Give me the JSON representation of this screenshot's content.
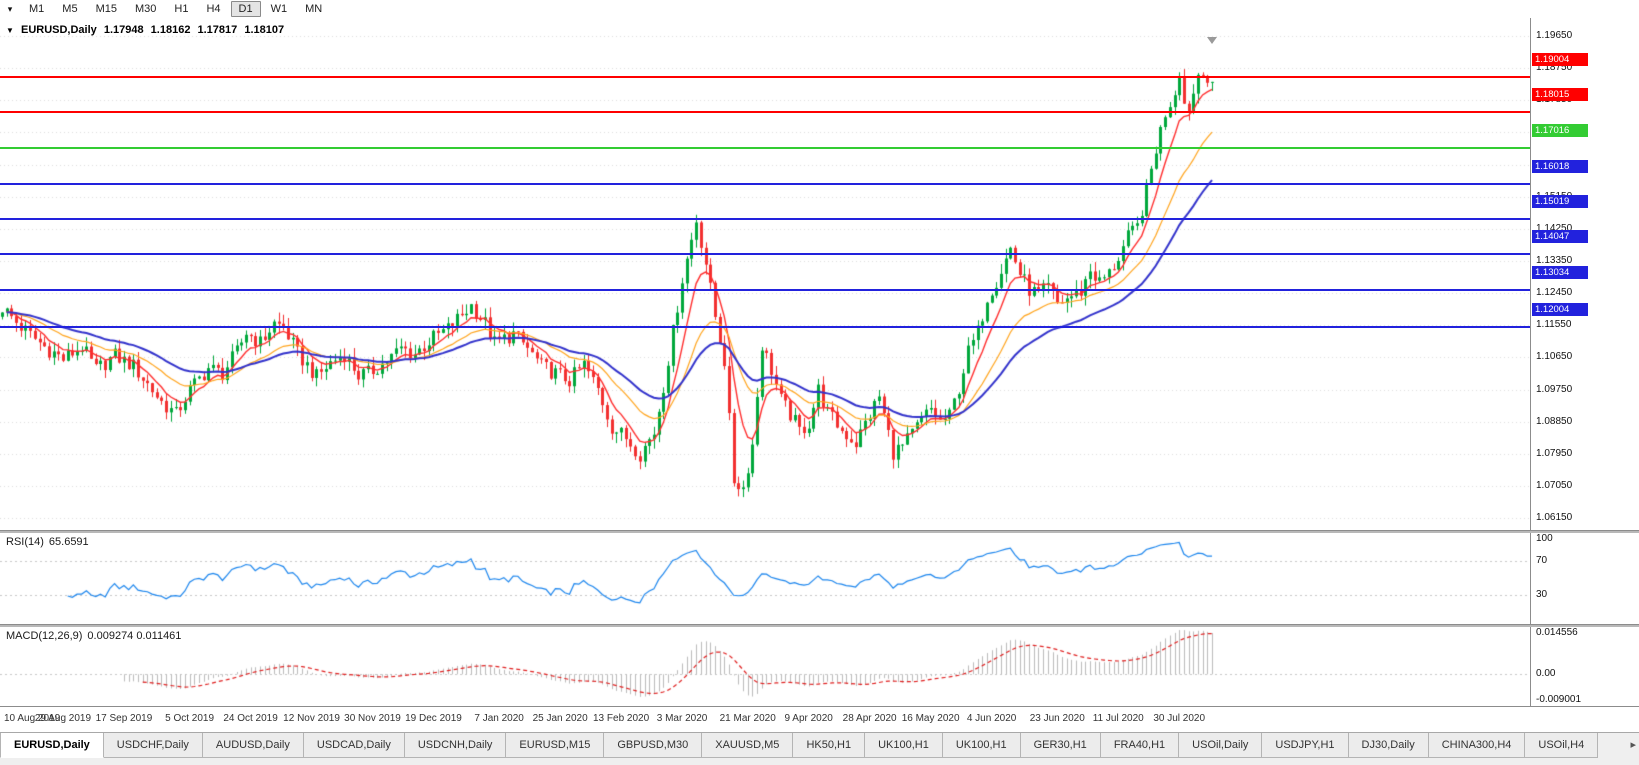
{
  "toolbar": {
    "dropdown_icon": "▾",
    "timeframes": [
      "M1",
      "M5",
      "M15",
      "M30",
      "H1",
      "H4",
      "D1",
      "W1",
      "MN"
    ],
    "active": "D1"
  },
  "chart": {
    "header": {
      "marker": "▼",
      "symbol": "EURUSD,Daily",
      "open": "1.17948",
      "high": "1.18162",
      "low": "1.17817",
      "close": "1.18107"
    },
    "y_ticks": [
      "1.19650",
      "1.18750",
      "1.17850",
      "1.16950",
      "1.16050",
      "1.15150",
      "1.14250",
      "1.13350",
      "1.12450",
      "1.11550",
      "1.10650",
      "1.09750",
      "1.08850",
      "1.07950",
      "1.07050",
      "1.06150"
    ],
    "hlines": [
      {
        "label": "1.19004",
        "price": 1.19004,
        "color": "#FF0000",
        "width": 2
      },
      {
        "label": "1.18015",
        "price": 1.18015,
        "color": "#FF0000",
        "width": 2,
        "current": true
      },
      {
        "label": "1.17016",
        "price": 1.17016,
        "color": "#33CC33",
        "width": 2
      },
      {
        "label": "1.16018",
        "price": 1.16018,
        "color": "#2222DD",
        "width": 2
      },
      {
        "label": "1.15019",
        "price": 1.15019,
        "color": "#2222DD",
        "width": 2
      },
      {
        "label": "1.14047",
        "price": 1.14047,
        "color": "#2222DD",
        "width": 2
      },
      {
        "label": "1.13034",
        "price": 1.13034,
        "color": "#2222DD",
        "width": 2
      },
      {
        "label": "1.12004",
        "price": 1.12004,
        "color": "#2222DD",
        "width": 2
      }
    ],
    "x_labels": [
      "10 Aug 2019",
      "29 Aug 2019",
      "17 Sep 2019",
      "5 Oct 2019",
      "24 Oct 2019",
      "12 Nov 2019",
      "30 Nov 2019",
      "19 Dec 2019",
      "7 Jan 2020",
      "25 Jan 2020",
      "13 Feb 2020",
      "3 Mar 2020",
      "21 Mar 2020",
      "9 Apr 2020",
      "28 Apr 2020",
      "16 May 2020",
      "4 Jun 2020",
      "23 Jun 2020",
      "11 Jul 2020",
      "30 Jul 2020"
    ]
  },
  "rsi": {
    "label": "RSI(14)",
    "value": "65.6591",
    "ticks": [
      {
        "label": "100",
        "value": 100
      },
      {
        "label": "70",
        "value": 70
      },
      {
        "label": "30",
        "value": 30
      }
    ],
    "levels": [
      70,
      30
    ],
    "range": {
      "top": 100,
      "bottom": 0
    }
  },
  "macd": {
    "label": "MACD(12,26,9)",
    "values": "0.009274 0.011461",
    "ticks": [
      {
        "label": "0.014556",
        "value": 0.014556
      },
      {
        "label": "0.00",
        "value": 0.0
      },
      {
        "label": "-0.009001",
        "value": -0.009001
      }
    ],
    "range": {
      "top": 0.015,
      "bottom": -0.0095
    }
  },
  "tabs": {
    "scroll_right_icon": "▸",
    "active_index": 0,
    "items": [
      "EURUSD,Daily",
      "USDCHF,Daily",
      "AUDUSD,Daily",
      "USDCAD,Daily",
      "USDCNH,Daily",
      "EURUSD,M15",
      "GBPUSD,M30",
      "XAUUSD,M5",
      "HK50,H1",
      "UK100,H1",
      "UK100,H1",
      "GER30,H1",
      "FRA40,H1",
      "USOil,Daily",
      "USDJPY,H1",
      "DJ30,Daily",
      "CHINA300,H4",
      "USOil,H4"
    ]
  },
  "colors": {
    "up": "#00A83C",
    "down": "#F23030",
    "ema_fast": "#FF2E2E",
    "ema_mid": "#FFA51E",
    "ema_slow": "#3333CC",
    "rsi_line": "#1C86EE",
    "indicator_level": "#C8C8C8",
    "macd_hist": "#BBBBBB",
    "macd_signal": "#E02020",
    "grid": "#DCDCDC"
  },
  "chart_data": {
    "type": "candlestick",
    "title": "EURUSD,Daily",
    "price_range": {
      "top": 1.1993,
      "bottom": 1.0604
    },
    "bars": 259,
    "noise": 0.0045,
    "anchors": [
      [
        0,
        1.1205
      ],
      [
        4,
        1.115
      ],
      [
        9,
        1.1095
      ],
      [
        13,
        1.106
      ],
      [
        17,
        1.1095
      ],
      [
        20,
        1.103
      ],
      [
        24,
        1.107
      ],
      [
        28,
        1.104
      ],
      [
        31,
        1.099
      ],
      [
        34,
        1.094
      ],
      [
        37,
        1.0905
      ],
      [
        40,
        1.0975
      ],
      [
        44,
        1.1035
      ],
      [
        47,
        1.102
      ],
      [
        50,
        1.108
      ],
      [
        52,
        1.1135
      ],
      [
        55,
        1.1105
      ],
      [
        58,
        1.116
      ],
      [
        60,
        1.115
      ],
      [
        63,
        1.1075
      ],
      [
        67,
        1.101
      ],
      [
        70,
        1.105
      ],
      [
        73,
        1.1075
      ],
      [
        76,
        1.1015
      ],
      [
        78,
        1.102
      ],
      [
        82,
        1.1055
      ],
      [
        85,
        1.109
      ],
      [
        88,
        1.1075
      ],
      [
        92,
        1.112
      ],
      [
        95,
        1.1145
      ],
      [
        98,
        1.1185
      ],
      [
        100,
        1.121
      ],
      [
        103,
        1.116
      ],
      [
        105,
        1.1105
      ],
      [
        109,
        1.113
      ],
      [
        112,
        1.109
      ],
      [
        115,
        1.104
      ],
      [
        118,
        1.102
      ],
      [
        121,
        1.1
      ],
      [
        124,
        1.1045
      ],
      [
        127,
        1.0975
      ],
      [
        130,
        1.087
      ],
      [
        133,
        1.084
      ],
      [
        136,
        1.0795
      ],
      [
        139,
        1.0855
      ],
      [
        141,
        1.0985
      ],
      [
        143,
        1.1135
      ],
      [
        145,
        1.1285
      ],
      [
        148,
        1.145
      ],
      [
        150,
        1.133
      ],
      [
        152,
        1.118
      ],
      [
        154,
        1.1055
      ],
      [
        156,
        1.072
      ],
      [
        158,
        1.07
      ],
      [
        160,
        1.082
      ],
      [
        162,
        1.11
      ],
      [
        164,
        1.103
      ],
      [
        166,
        1.0945
      ],
      [
        168,
        1.0905
      ],
      [
        170,
        1.086
      ],
      [
        172,
        1.088
      ],
      [
        174,
        1.0975
      ],
      [
        176,
        1.091
      ],
      [
        179,
        1.086
      ],
      [
        182,
        1.0825
      ],
      [
        184,
        1.088
      ],
      [
        187,
        1.0955
      ],
      [
        190,
        1.08
      ],
      [
        192,
        1.0815
      ],
      [
        194,
        1.085
      ],
      [
        196,
        1.089
      ],
      [
        198,
        1.092
      ],
      [
        200,
        1.0885
      ],
      [
        202,
        1.09
      ],
      [
        204,
        1.098
      ],
      [
        206,
        1.108
      ],
      [
        208,
        1.1135
      ],
      [
        210,
        1.1235
      ],
      [
        212,
        1.128
      ],
      [
        215,
        1.137
      ],
      [
        217,
        1.13
      ],
      [
        219,
        1.1255
      ],
      [
        221,
        1.124
      ],
      [
        223,
        1.126
      ],
      [
        225,
        1.1215
      ],
      [
        227,
        1.123
      ],
      [
        230,
        1.125
      ],
      [
        232,
        1.131
      ],
      [
        234,
        1.1275
      ],
      [
        236,
        1.13
      ],
      [
        238,
        1.1345
      ],
      [
        240,
        1.14
      ],
      [
        242,
        1.143
      ],
      [
        244,
        1.153
      ],
      [
        246,
        1.165
      ],
      [
        248,
        1.175
      ],
      [
        250,
        1.181
      ],
      [
        251,
        1.187
      ],
      [
        252,
        1.1775
      ],
      [
        253,
        1.1765
      ],
      [
        254,
        1.1805
      ],
      [
        255,
        1.186
      ],
      [
        256,
        1.1875
      ],
      [
        257,
        1.184
      ],
      [
        258,
        1.1815
      ]
    ],
    "overlays": [
      {
        "name": "ma-fast",
        "period": 7,
        "color": "#FF2E2E",
        "width": 1.4
      },
      {
        "name": "ma-mid",
        "period": 19,
        "color": "#FFA51E",
        "width": 1.2
      },
      {
        "name": "ma-slow",
        "period": 35,
        "color": "#3333CC",
        "width": 2
      }
    ],
    "indicators": [
      {
        "name": "RSI",
        "period": 14,
        "current": 65.6591
      },
      {
        "name": "MACD",
        "fast": 12,
        "slow": 26,
        "signal": 9,
        "current_macd": 0.009274,
        "current_signal": 0.011461
      }
    ]
  }
}
